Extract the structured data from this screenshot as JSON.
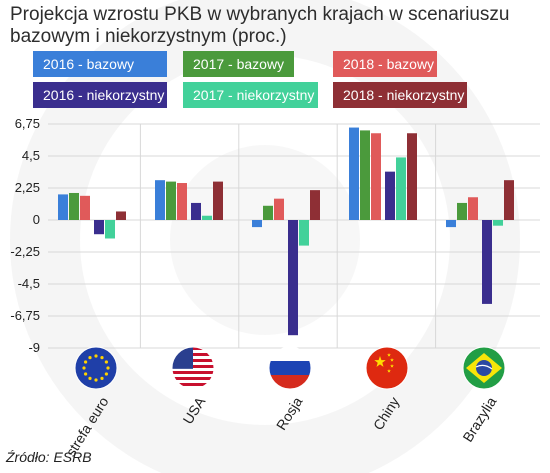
{
  "header": {
    "title_line1": "Projekcja wzrostu PKB w wybranych krajach w scenariuszu",
    "title_line2": "bazowym i niekorzystnym (proc.)"
  },
  "legend": [
    {
      "label": "2016 - bazowy",
      "color": "#3a7fd9"
    },
    {
      "label": "2017 - bazowy",
      "color": "#4b9a3c"
    },
    {
      "label": "2018 - bazowy",
      "color": "#e05a5a"
    },
    {
      "label": "2016 - niekorzystny",
      "color": "#3a2e8e"
    },
    {
      "label": "2017 - niekorzystny",
      "color": "#42d19a"
    },
    {
      "label": "2018 - niekorzystny",
      "color": "#8e2f35"
    }
  ],
  "chart_data": {
    "type": "bar",
    "title": "Projekcja wzrostu PKB w wybranych krajach w scenariuszu bazowym i niekorzystnym (proc.)",
    "categories": [
      "strefa euro",
      "USA",
      "Rosja",
      "Chiny",
      "Brazylia"
    ],
    "y_ticks": [
      "6,75",
      "4,5",
      "2,25",
      "0",
      "-2,25",
      "-4,5",
      "-6,75",
      "-9"
    ],
    "ylim": [
      -9,
      6.75
    ],
    "grid": true,
    "legend_position": "top",
    "series": [
      {
        "name": "2016 - bazowy",
        "color": "#3a7fd9",
        "values": [
          1.8,
          2.8,
          -0.5,
          6.5,
          -0.5
        ]
      },
      {
        "name": "2017 - bazowy",
        "color": "#4b9a3c",
        "values": [
          1.9,
          2.7,
          1.0,
          6.3,
          1.2
        ]
      },
      {
        "name": "2018 - bazowy",
        "color": "#e05a5a",
        "values": [
          1.7,
          2.6,
          1.5,
          6.1,
          1.6
        ]
      },
      {
        "name": "2016 - niekorzystny",
        "color": "#3a2e8e",
        "values": [
          -1.0,
          1.2,
          -8.1,
          3.4,
          -5.9
        ]
      },
      {
        "name": "2017 - niekorzystny",
        "color": "#42d19a",
        "values": [
          -1.3,
          0.3,
          -1.8,
          4.4,
          -0.4
        ]
      },
      {
        "name": "2018 - niekorzystny",
        "color": "#8e2f35",
        "values": [
          0.6,
          2.7,
          2.1,
          6.1,
          2.8
        ]
      }
    ]
  },
  "footer": {
    "source": "Źródło: ESRB"
  }
}
